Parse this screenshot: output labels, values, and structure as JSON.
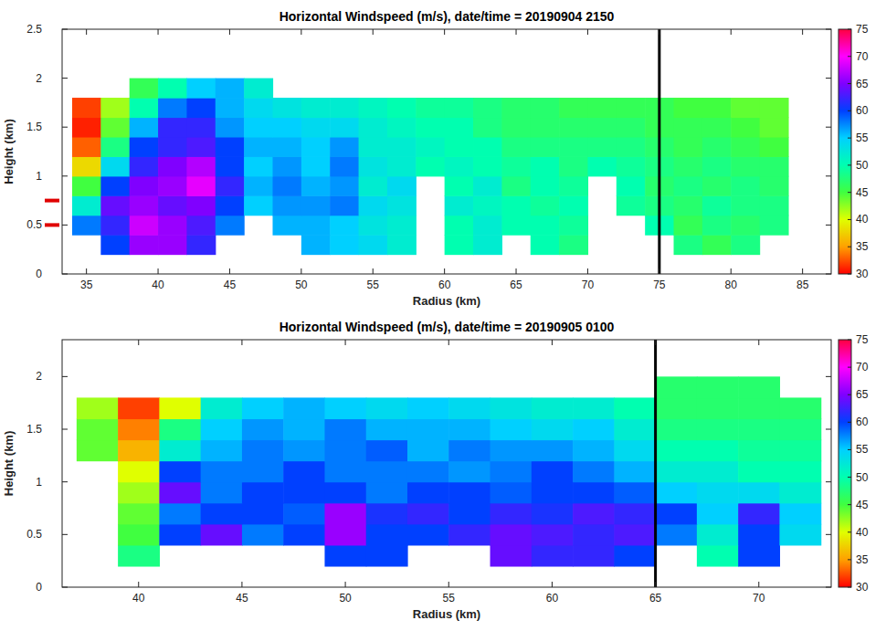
{
  "chart_data": [
    {
      "type": "heatmap",
      "title": "Horizontal Windspeed (m/s), date/time = 20190904 2150",
      "x_label": "Radius (km)",
      "y_label": "Height (km)",
      "xlim": [
        33.3,
        87
      ],
      "ylim": [
        0,
        2.5
      ],
      "xticks": [
        35,
        40,
        45,
        50,
        55,
        60,
        65,
        70,
        75,
        80,
        85
      ],
      "yticks": [
        0,
        0.5,
        1,
        1.5,
        2,
        2.5
      ],
      "x": [
        35,
        37,
        39,
        41,
        43,
        45,
        47,
        49,
        51,
        53,
        55,
        57,
        59,
        61,
        63,
        65,
        67,
        69,
        71,
        73,
        75,
        77,
        79,
        81,
        83
      ],
      "y": [
        0.3,
        0.5,
        0.7,
        0.9,
        1.1,
        1.3,
        1.5,
        1.7,
        1.9
      ],
      "z": [
        [
          null,
          60,
          66,
          66,
          62,
          null,
          null,
          null,
          56,
          55,
          54,
          52,
          null,
          50,
          52,
          null,
          50,
          48,
          null,
          null,
          null,
          48,
          46,
          48,
          null
        ],
        [
          58,
          62,
          68,
          66,
          63,
          58,
          null,
          56,
          56,
          55,
          53,
          52,
          null,
          50,
          52,
          50,
          50,
          49,
          null,
          null,
          50,
          46,
          48,
          47,
          48
        ],
        [
          52,
          64,
          66,
          64,
          65,
          60,
          55,
          57,
          57,
          58,
          54,
          53,
          null,
          52,
          51,
          50,
          49,
          50,
          null,
          49,
          48,
          47,
          49,
          48,
          48
        ],
        [
          45,
          60,
          65,
          66,
          69,
          62,
          56,
          58,
          56,
          57,
          52,
          54,
          null,
          50,
          52,
          48,
          50,
          49,
          null,
          50,
          47,
          48,
          47,
          48,
          47
        ],
        [
          38,
          54,
          62,
          65,
          67,
          60,
          55,
          57,
          55,
          58,
          53,
          52,
          50,
          51,
          50,
          49,
          50,
          48,
          50,
          49,
          48,
          47,
          48,
          47,
          47
        ],
        [
          33,
          48,
          60,
          62,
          63,
          60,
          56,
          56,
          55,
          57,
          52,
          52,
          51,
          50,
          50,
          48,
          48,
          48,
          48,
          48,
          47,
          46,
          47,
          46,
          45
        ],
        [
          31,
          44,
          56,
          62,
          62,
          57,
          55,
          55,
          54,
          54,
          52,
          51,
          50,
          50,
          48,
          47,
          47,
          47,
          47,
          47,
          46,
          46,
          46,
          45,
          44
        ],
        [
          32,
          42,
          50,
          58,
          60,
          56,
          54,
          53,
          52,
          52,
          51,
          50,
          49,
          49,
          48,
          47,
          47,
          46,
          46,
          46,
          46,
          45,
          45,
          44,
          44
        ],
        [
          null,
          null,
          46,
          50,
          55,
          56,
          52,
          null,
          null,
          null,
          null,
          null,
          null,
          null,
          null,
          null,
          null,
          null,
          null,
          null,
          null,
          null,
          null,
          null,
          null
        ]
      ],
      "colorbar": {
        "range": [
          30,
          75
        ],
        "ticks": [
          30,
          35,
          40,
          45,
          50,
          55,
          60,
          65,
          70,
          75
        ],
        "colors": [
          "#ff0000",
          "#ffa000",
          "#e0ff00",
          "#40ff40",
          "#00ffb0",
          "#00d0ff",
          "#0040ff",
          "#8000ff",
          "#ff00ff",
          "#ff0040"
        ]
      },
      "annotations": [
        {
          "type": "vline",
          "x": 75,
          "color": "#000000"
        },
        {
          "type": "y_marker",
          "y": 0.5,
          "color": "#e00000"
        },
        {
          "type": "y_marker",
          "y": 0.75,
          "color": "#e00000"
        }
      ]
    },
    {
      "type": "heatmap",
      "title": "Horizontal Windspeed (m/s), date/time = 20190905 0100",
      "x_label": "Radius (km)",
      "y_label": "Height (km)",
      "xlim": [
        36.3,
        73.5
      ],
      "ylim": [
        0,
        2.35
      ],
      "xticks": [
        40,
        45,
        50,
        55,
        60,
        65,
        70
      ],
      "yticks": [
        0,
        0.5,
        1,
        1.5,
        2
      ],
      "x": [
        38,
        40,
        42,
        44,
        46,
        48,
        50,
        52,
        54,
        56,
        58,
        60,
        62,
        64,
        66,
        68,
        70,
        72
      ],
      "y": [
        0.3,
        0.5,
        0.7,
        0.9,
        1.1,
        1.3,
        1.5,
        1.7,
        1.9
      ],
      "z": [
        [
          null,
          48,
          null,
          null,
          null,
          null,
          60,
          60,
          null,
          null,
          64,
          62,
          62,
          60,
          null,
          50,
          60,
          null
        ],
        [
          null,
          45,
          60,
          64,
          58,
          60,
          66,
          60,
          60,
          62,
          64,
          63,
          62,
          63,
          58,
          52,
          60,
          54
        ],
        [
          null,
          44,
          58,
          60,
          60,
          59,
          66,
          61,
          62,
          60,
          62,
          61,
          63,
          62,
          60,
          55,
          62,
          55
        ],
        [
          null,
          42,
          64,
          58,
          60,
          60,
          60,
          58,
          60,
          60,
          59,
          60,
          60,
          59,
          55,
          54,
          54,
          52
        ],
        [
          null,
          40,
          60,
          58,
          58,
          60,
          58,
          58,
          58,
          57,
          58,
          60,
          58,
          56,
          52,
          52,
          50,
          50
        ],
        [
          44,
          36,
          52,
          56,
          58,
          57,
          58,
          59,
          56,
          58,
          57,
          57,
          56,
          54,
          50,
          50,
          49,
          49
        ],
        [
          44,
          34,
          48,
          55,
          57,
          56,
          58,
          56,
          56,
          56,
          55,
          54,
          55,
          52,
          48,
          48,
          48,
          48
        ],
        [
          42,
          32,
          40,
          52,
          55,
          56,
          55,
          54,
          55,
          54,
          53,
          52,
          52,
          50,
          47,
          47,
          47,
          47
        ],
        [
          null,
          null,
          null,
          null,
          null,
          null,
          null,
          null,
          null,
          null,
          null,
          null,
          null,
          null,
          47,
          47,
          47,
          null
        ]
      ],
      "colorbar": {
        "range": [
          30,
          75
        ],
        "ticks": [
          30,
          35,
          40,
          45,
          50,
          55,
          60,
          65,
          70,
          75
        ],
        "colors": [
          "#ff0000",
          "#ffa000",
          "#e0ff00",
          "#40ff40",
          "#00ffb0",
          "#00d0ff",
          "#0040ff",
          "#8000ff",
          "#ff00ff",
          "#ff0040"
        ]
      },
      "annotations": [
        {
          "type": "vline",
          "x": 65,
          "color": "#000000"
        }
      ]
    }
  ]
}
